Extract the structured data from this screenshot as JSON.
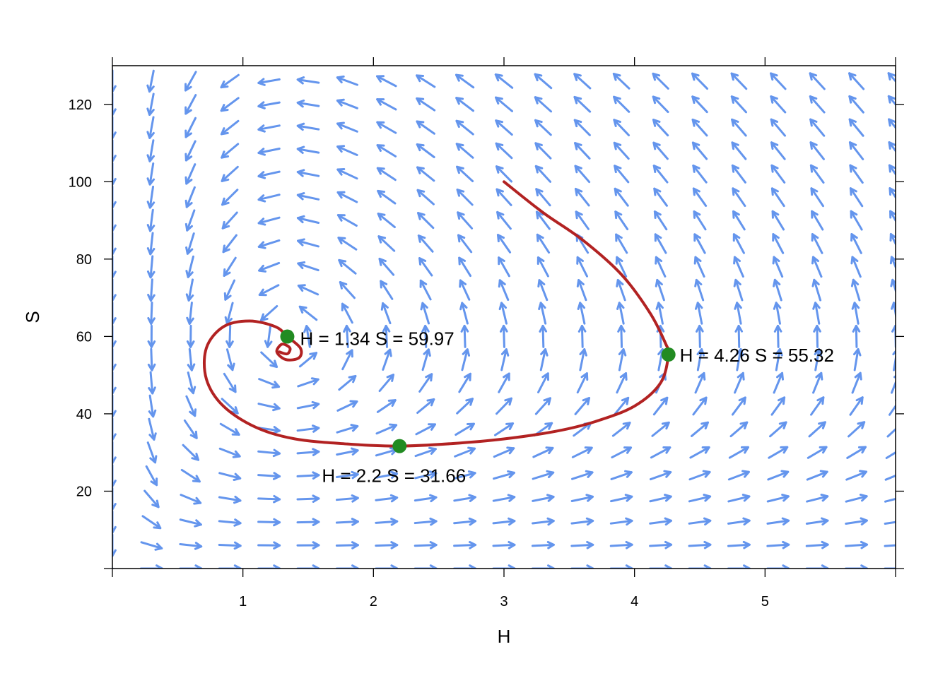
{
  "chart_data": {
    "type": "scatter",
    "xlabel": "H",
    "ylabel": "S",
    "xlim": [
      0,
      6
    ],
    "ylim": [
      0,
      130
    ],
    "x_ticks": [
      1,
      2,
      3,
      4,
      5
    ],
    "y_ticks": [
      20,
      40,
      60,
      80,
      100,
      120
    ],
    "grid": false,
    "vector_field": {
      "color": "#6495ED",
      "description": "direction field with arrows on a regular grid"
    },
    "trajectory": {
      "color": "#B22222",
      "points": [
        [
          3.0,
          100
        ],
        [
          3.3,
          92
        ],
        [
          3.6,
          85
        ],
        [
          3.9,
          76
        ],
        [
          4.12,
          66
        ],
        [
          4.24,
          58
        ],
        [
          4.26,
          55.32
        ],
        [
          4.2,
          48
        ],
        [
          4.0,
          42
        ],
        [
          3.7,
          38
        ],
        [
          3.4,
          35.5
        ],
        [
          3.0,
          33.5
        ],
        [
          2.6,
          32.3
        ],
        [
          2.2,
          31.66
        ],
        [
          1.8,
          32.2
        ],
        [
          1.4,
          33.5
        ],
        [
          1.1,
          36.5
        ],
        [
          0.85,
          42
        ],
        [
          0.72,
          49
        ],
        [
          0.72,
          57
        ],
        [
          0.85,
          62.5
        ],
        [
          1.05,
          64
        ],
        [
          1.25,
          62.5
        ],
        [
          1.34,
          59.97
        ],
        [
          1.44,
          57
        ],
        [
          1.43,
          54.5
        ],
        [
          1.33,
          54
        ],
        [
          1.26,
          56
        ],
        [
          1.3,
          58
        ],
        [
          1.36,
          57
        ],
        [
          1.34,
          55.5
        ],
        [
          1.28,
          56
        ]
      ]
    },
    "marked_points": [
      {
        "x": 1.34,
        "y": 59.97,
        "label": "H = 1.34 S = 59.97",
        "color": "#228B22"
      },
      {
        "x": 4.26,
        "y": 55.32,
        "label": "H = 4.26 S = 55.32",
        "color": "#228B22"
      },
      {
        "x": 2.2,
        "y": 31.66,
        "label": "H = 2.2 S = 31.66",
        "color": "#228B22"
      }
    ]
  }
}
